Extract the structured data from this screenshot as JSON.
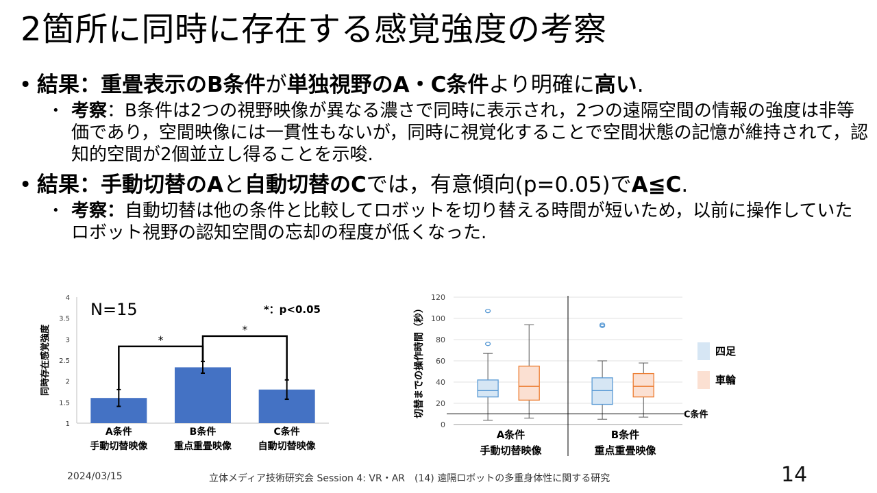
{
  "slide": {
    "title": "2箇所に同時に存在する感覚強度の考察",
    "bullets": [
      {
        "parts": [
          {
            "t": "結果：重畳表示のB条件",
            "b": true
          },
          {
            "t": "が",
            "b": false
          },
          {
            "t": "単独視野のA・C条件",
            "b": true
          },
          {
            "t": "より明確に",
            "b": false
          },
          {
            "t": "高い",
            "b": true
          },
          {
            "t": ".",
            "b": false
          }
        ],
        "sub": [
          {
            "t": "考察",
            "b": true
          },
          {
            "t": "：B条件は2つの視野映像が異なる濃さで同時に表示され，2つの遠隔空間の情報の強度は非等価であり，空間映像には一貫性もないが，同時に視覚化することで空間状態の記憶が維持されて，認知的空間が2個並立し得ることを示唆.",
            "b": false
          }
        ]
      },
      {
        "parts": [
          {
            "t": "結果：手動切替のA",
            "b": true
          },
          {
            "t": "と",
            "b": false
          },
          {
            "t": "自動切替のC",
            "b": true
          },
          {
            "t": "では，有意傾向(p=0.05)で",
            "b": false
          },
          {
            "t": "A≦C",
            "b": true
          },
          {
            "t": ".",
            "b": false
          }
        ],
        "sub": [
          {
            "t": "考察：",
            "b": true
          },
          {
            "t": "自動切替は他の条件と比較してロボットを切り替える時間が短いため，以前に操作していたロボット視野の認知空間の忘却の程度が低くなった.",
            "b": false
          }
        ]
      }
    ],
    "footer": {
      "date": "2024/03/15",
      "conference": "立体メディア技術研究会 Session 4: VR・AR　(14) 遠隔ロボットの多重身体性に関する研究",
      "page": "14"
    }
  },
  "chart_data": [
    {
      "type": "bar",
      "ylabel": "同時存在感覚強度",
      "ylim": [
        1,
        4
      ],
      "yticks": [
        "1",
        "1.5",
        "2",
        "2.5",
        "3",
        "3.5",
        "4"
      ],
      "categories": [
        "A条件",
        "B条件",
        "C条件"
      ],
      "category_sublabels": [
        "手動切替映像",
        "重点重畳映像",
        "自動切替映像"
      ],
      "values": [
        1.6,
        2.33,
        1.8
      ],
      "error": [
        0.2,
        0.14,
        0.23
      ],
      "bar_color": "#4472c4",
      "annotation_n": "N=15",
      "annotation_sig": "*：p<0.05",
      "significance": [
        {
          "from": 0,
          "to": 1,
          "label": "*"
        },
        {
          "from": 1,
          "to": 2,
          "label": "*"
        }
      ]
    },
    {
      "type": "box",
      "ylabel": "切替までの操作時間（秒）",
      "ylim": [
        0,
        120
      ],
      "yticks": [
        "0",
        "20",
        "40",
        "60",
        "80",
        "100",
        "120"
      ],
      "groups": [
        "A条件",
        "B条件"
      ],
      "group_sublabels": [
        "手動切替映像",
        "重点重畳映像"
      ],
      "series": [
        {
          "name": "四足",
          "color": "#5b9bd5",
          "fill": "#d6e6f4"
        },
        {
          "name": "車輪",
          "color": "#ed7d31",
          "fill": "#fbe0d2"
        }
      ],
      "boxes": [
        {
          "group": 0,
          "series": 0,
          "min": 4,
          "q1": 26,
          "median": 32,
          "q3": 42,
          "max": 67,
          "outliers": [
            76,
            107
          ]
        },
        {
          "group": 0,
          "series": 1,
          "min": 6,
          "q1": 23,
          "median": 36,
          "q3": 55,
          "max": 94,
          "outliers": []
        },
        {
          "group": 1,
          "series": 0,
          "min": 5,
          "q1": 19,
          "median": 32,
          "q3": 44,
          "max": 60,
          "outliers": [
            93,
            94
          ]
        },
        {
          "group": 1,
          "series": 1,
          "min": 7,
          "q1": 26,
          "median": 36,
          "q3": 48,
          "max": 58,
          "outliers": []
        }
      ],
      "reference_line": {
        "value": 10,
        "label": "C条件"
      }
    }
  ]
}
